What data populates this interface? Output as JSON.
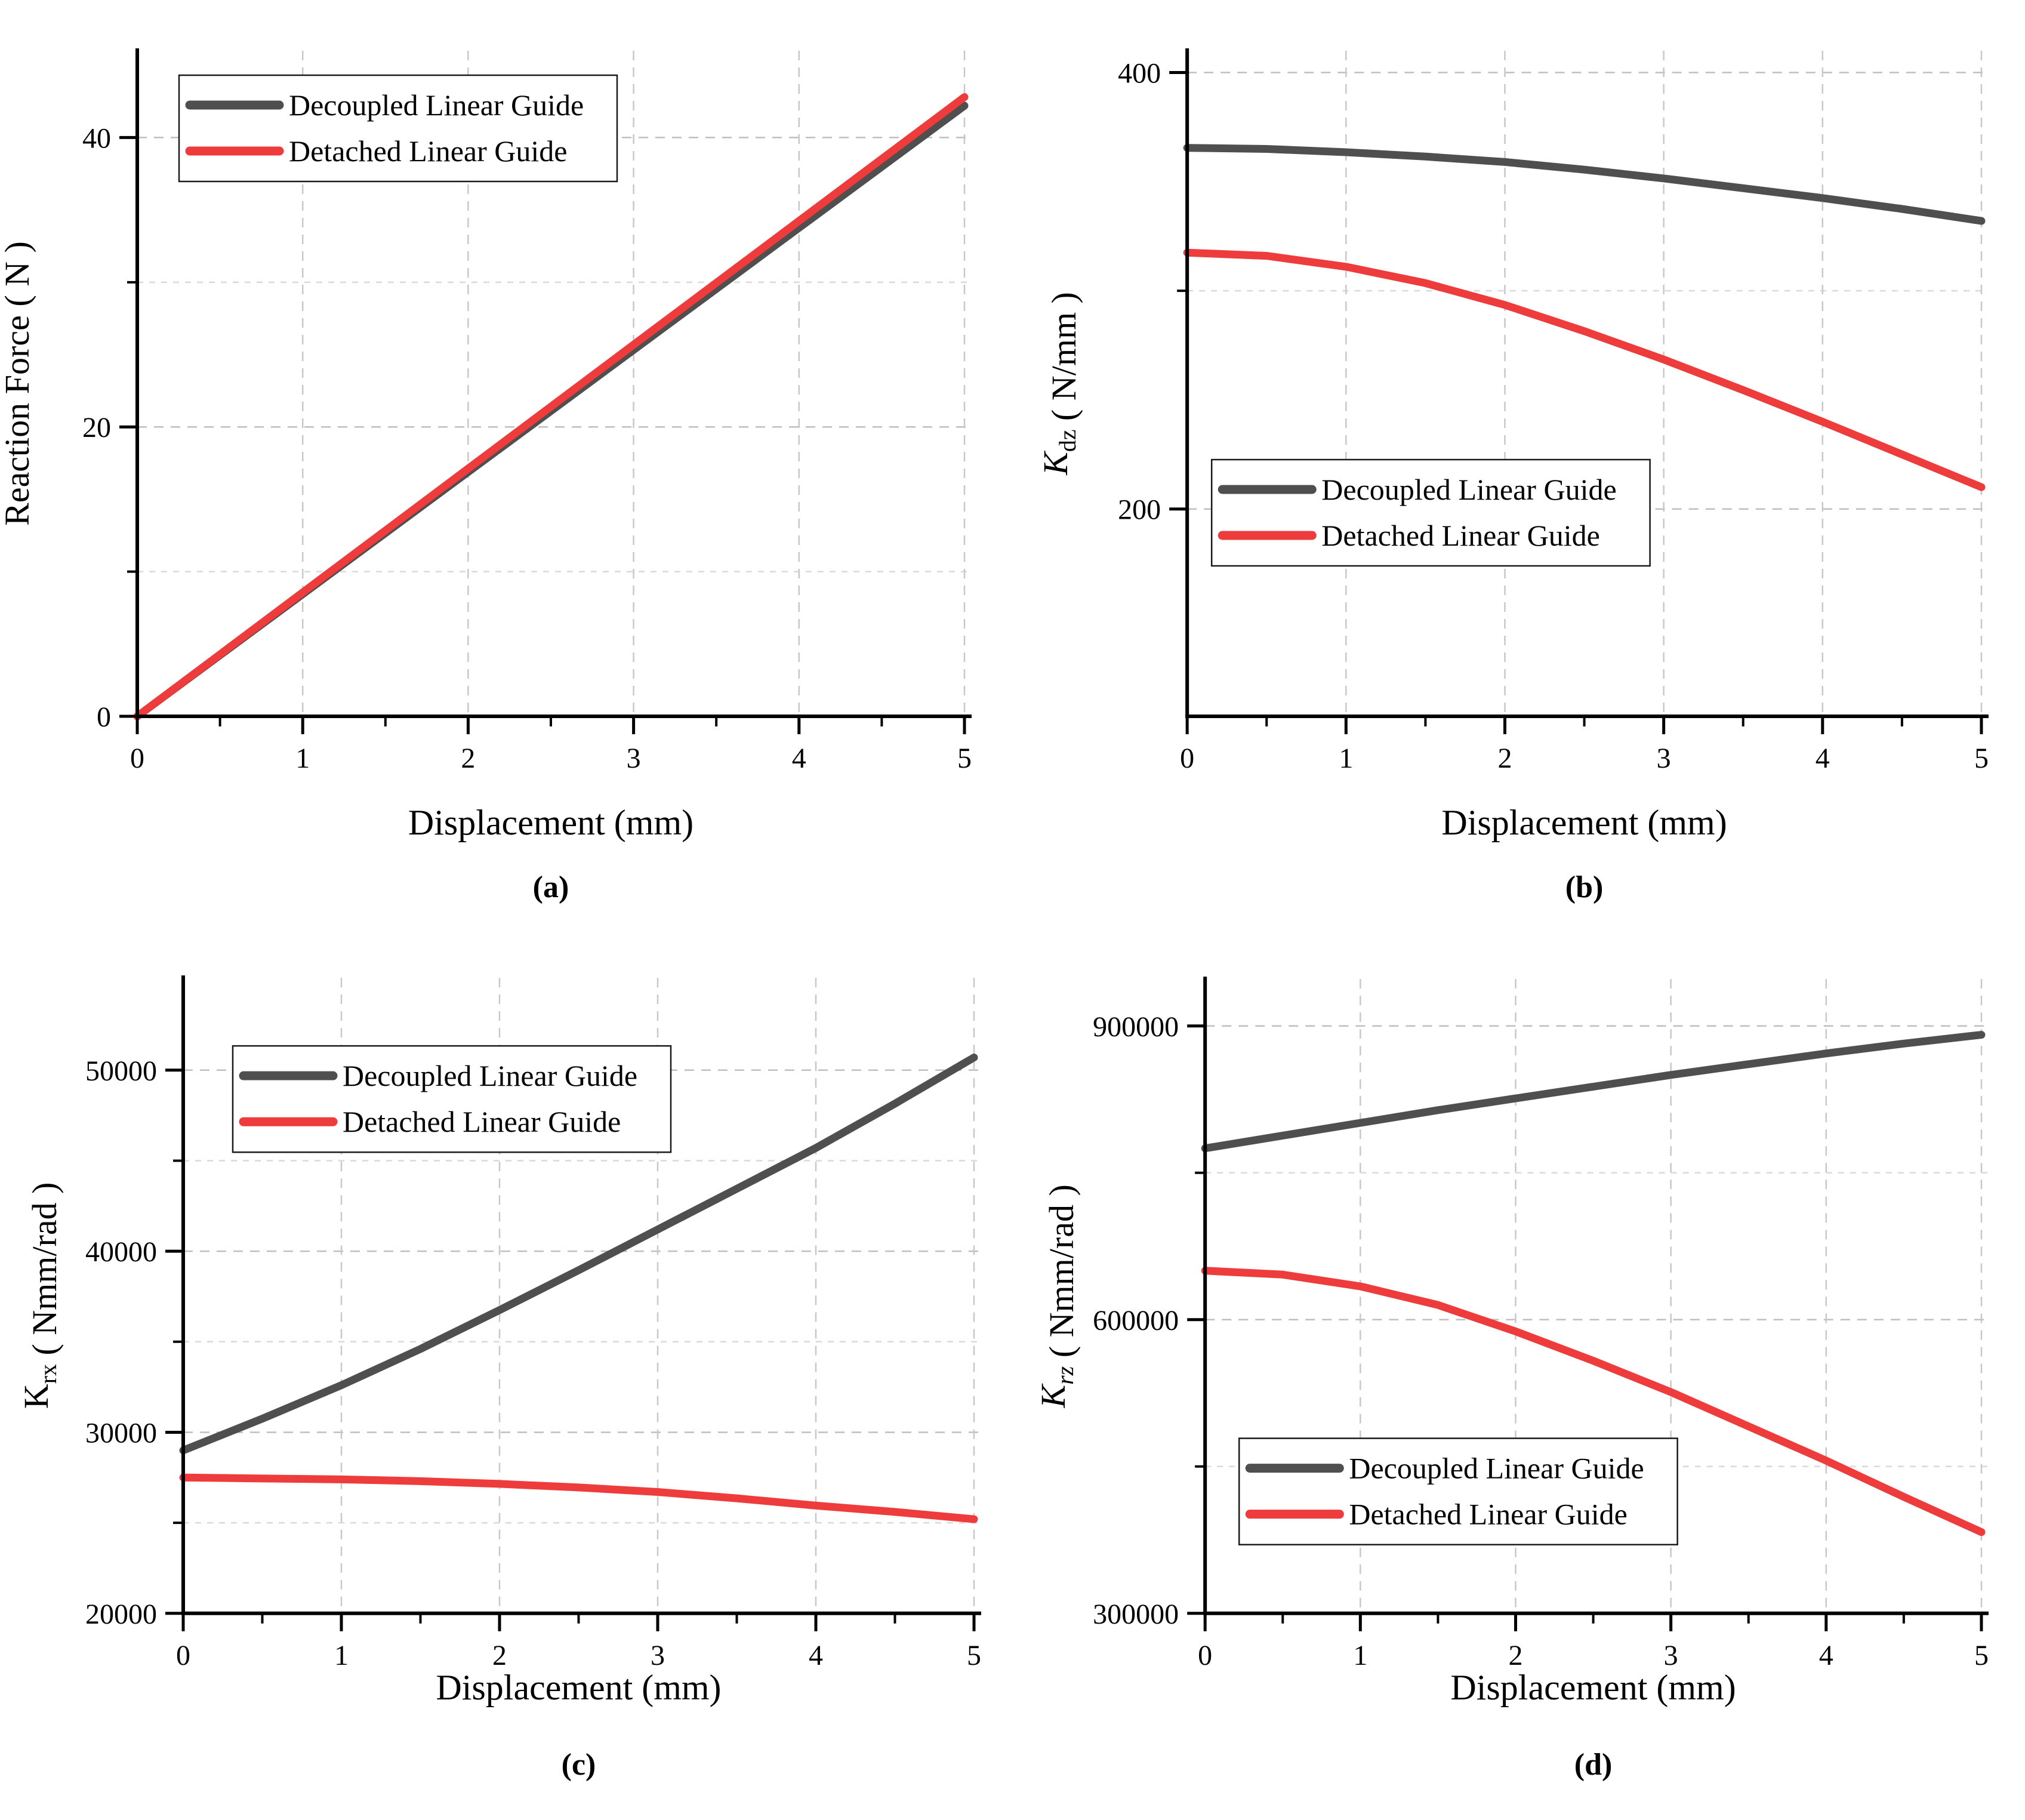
{
  "page": {
    "background": "#ffffff"
  },
  "legend": {
    "items": [
      {
        "label": "Decoupled Linear Guide",
        "color": "#4f4f4f"
      },
      {
        "label": "Detached Linear Guide",
        "color": "#ee3b3c"
      }
    ]
  },
  "chart_data": [
    {
      "type": "line",
      "panel": "a",
      "letter": "(a)",
      "xlabel": "Displacement (mm)",
      "ylabel": "Reaction Force ( N )",
      "ylabel_parts": [
        {
          "t": "Reaction Force ( N )",
          "italic": false,
          "sub": false
        }
      ],
      "x": [
        0,
        0.5,
        1,
        1.5,
        2,
        2.5,
        3,
        3.5,
        4,
        4.5,
        5
      ],
      "series": [
        {
          "name": "Decoupled Linear Guide",
          "color": "#4f4f4f",
          "values": [
            0,
            4.22,
            8.44,
            12.66,
            16.88,
            21.1,
            25.32,
            29.54,
            33.76,
            37.98,
            42.2
          ]
        },
        {
          "name": "Detached Linear Guide",
          "color": "#ee3b3c",
          "values": [
            0,
            4.28,
            8.56,
            12.84,
            17.12,
            21.4,
            25.68,
            29.96,
            34.24,
            38.52,
            42.8
          ]
        }
      ],
      "xlim": [
        0,
        5
      ],
      "ylim": [
        0,
        46
      ],
      "x_major_ticks": [
        0,
        1,
        2,
        3,
        4,
        5
      ],
      "x_minor_ticks": [
        0.5,
        1.5,
        2.5,
        3.5,
        4.5
      ],
      "y_major_ticks": [
        0,
        20,
        40
      ],
      "y_minor_ticks": [
        10,
        30
      ],
      "grid": "dashed",
      "legend_position": "top-left",
      "legend_xy": [
        300,
        126
      ]
    },
    {
      "type": "line",
      "panel": "b",
      "letter": "(b)",
      "xlabel": "Displacement (mm)",
      "ylabel": "Kdz ( N/mm )",
      "ylabel_parts": [
        {
          "t": "K",
          "italic": true,
          "sub": false
        },
        {
          "t": "dz",
          "italic": false,
          "sub": true
        },
        {
          "t": " ( N/mm )",
          "italic": false,
          "sub": false
        }
      ],
      "x": [
        0,
        0.5,
        1,
        1.5,
        2,
        2.5,
        3,
        3.5,
        4,
        4.5,
        5
      ],
      "series": [
        {
          "name": "Decoupled Linear Guide",
          "color": "#4f4f4f",
          "values": [
            365.5,
            365,
            363.5,
            361.5,
            359,
            355.5,
            351.5,
            347,
            342.5,
            337.5,
            332
          ]
        },
        {
          "name": "Detached Linear Guide",
          "color": "#ee3b3c",
          "values": [
            317.5,
            316,
            311,
            303.5,
            293.5,
            281.5,
            268.5,
            254.5,
            240,
            225,
            210
          ]
        }
      ],
      "xlim": [
        0,
        5
      ],
      "ylim": [
        105,
        410
      ],
      "x_major_ticks": [
        0,
        1,
        2,
        3,
        4,
        5
      ],
      "x_minor_ticks": [
        0.5,
        1.5,
        2.5,
        3.5,
        4.5
      ],
      "y_major_ticks": [
        200,
        400
      ],
      "y_minor_ticks": [
        300
      ],
      "grid": "dashed",
      "legend_position": "middle-left",
      "legend_xy": [
        334,
        770
      ]
    },
    {
      "type": "line",
      "panel": "c",
      "letter": "(c)",
      "xlabel": "Displacement (mm)",
      "ylabel": "Krx ( Nmm/rad )",
      "ylabel_parts": [
        {
          "t": "K",
          "italic": false,
          "sub": false
        },
        {
          "t": "rx",
          "italic": false,
          "sub": true
        },
        {
          "t": " ( Nmm/rad )",
          "italic": false,
          "sub": false
        }
      ],
      "x": [
        0,
        0.5,
        1,
        1.5,
        2,
        2.5,
        3,
        3.5,
        4,
        4.5,
        5
      ],
      "series": [
        {
          "name": "Decoupled Linear Guide",
          "color": "#4f4f4f",
          "values": [
            29000,
            30750,
            32600,
            34600,
            36750,
            38950,
            41200,
            43450,
            45700,
            48150,
            50700
          ]
        },
        {
          "name": "Detached Linear Guide",
          "color": "#ee3b3c",
          "values": [
            27500,
            27450,
            27400,
            27300,
            27150,
            26950,
            26700,
            26350,
            25950,
            25600,
            25200
          ]
        }
      ],
      "xlim": [
        0,
        5
      ],
      "ylim": [
        20000,
        55100
      ],
      "x_major_ticks": [
        0,
        1,
        2,
        3,
        4,
        5
      ],
      "x_minor_ticks": [
        0.5,
        1.5,
        2.5,
        3.5,
        4.5
      ],
      "y_major_ticks": [
        20000,
        30000,
        40000,
        50000
      ],
      "y_minor_ticks": [
        25000,
        35000,
        45000
      ],
      "grid": "dashed",
      "legend_position": "top-left",
      "legend_xy": [
        390,
        228
      ]
    },
    {
      "type": "line",
      "panel": "d",
      "letter": "(d)",
      "xlabel": "Displacement (mm)",
      "ylabel": "Krz ( Nmm/rad )",
      "ylabel_parts": [
        {
          "t": "K",
          "italic": true,
          "sub": false
        },
        {
          "t": "rz",
          "italic": true,
          "sub": true
        },
        {
          "t": " ( Nmm/rad )",
          "italic": false,
          "sub": false
        }
      ],
      "x": [
        0,
        0.5,
        1,
        1.5,
        2,
        2.5,
        3,
        3.5,
        4,
        4.5,
        5
      ],
      "series": [
        {
          "name": "Decoupled Linear Guide",
          "color": "#4f4f4f",
          "values": [
            775000,
            788000,
            801000,
            814000,
            826000,
            838000,
            850000,
            861000,
            872000,
            882000,
            891000
          ]
        },
        {
          "name": "Detached Linear Guide",
          "color": "#ee3b3c",
          "values": [
            650000,
            646000,
            634000,
            615000,
            588000,
            558000,
            526000,
            491000,
            456000,
            419000,
            383000
          ]
        }
      ],
      "xlim": [
        0,
        5
      ],
      "ylim": [
        300000,
        948000
      ],
      "x_major_ticks": [
        0,
        1,
        2,
        3,
        4,
        5
      ],
      "x_minor_ticks": [
        0.5,
        1.5,
        2.5,
        3.5,
        4.5
      ],
      "y_major_ticks": [
        300000,
        600000,
        900000
      ],
      "y_minor_ticks": [
        450000,
        750000
      ],
      "grid": "dashed",
      "legend_position": "middle-left",
      "legend_xy": [
        380,
        885
      ]
    }
  ]
}
